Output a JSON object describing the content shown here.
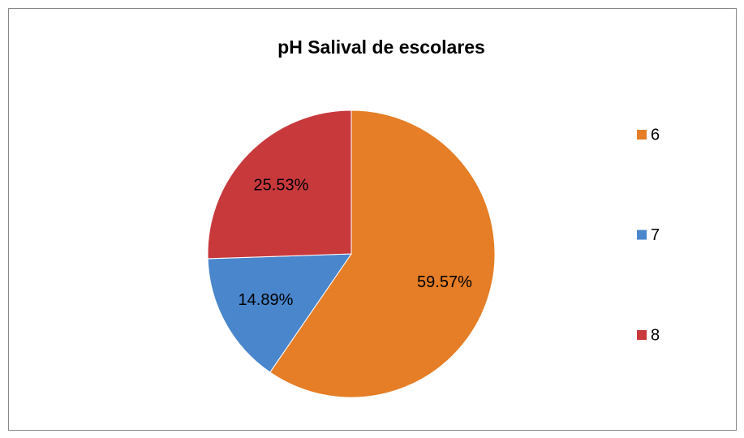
{
  "chart_data": {
    "type": "pie",
    "title": "pH Salival de escolares",
    "categories": [
      "6",
      "7",
      "8"
    ],
    "values": [
      59.57,
      14.89,
      25.53
    ],
    "value_labels": [
      "59.57%",
      "14.89%",
      "25.53%"
    ],
    "colors": [
      "#e57e26",
      "#4a86cc",
      "#c8393c"
    ],
    "legend": "right"
  }
}
